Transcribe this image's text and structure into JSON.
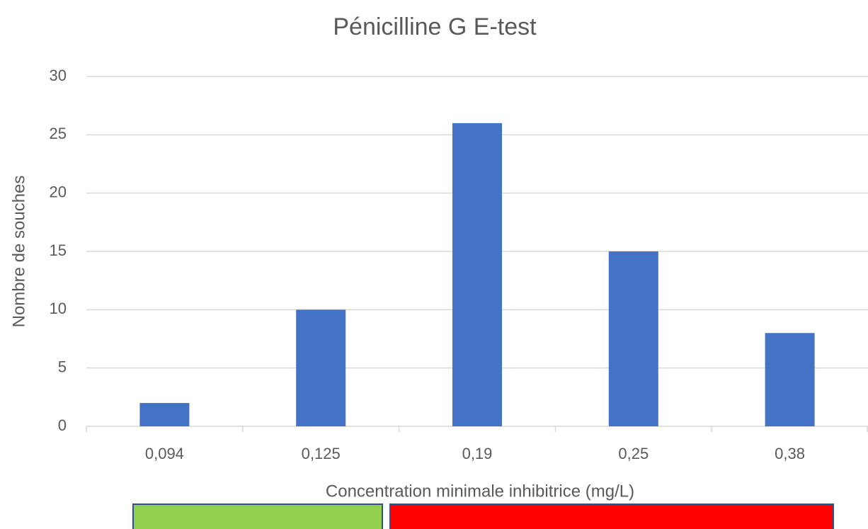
{
  "chart_data": {
    "type": "bar",
    "title": "Pénicilline G E-test",
    "x_label": "Concentration minimale inhibitrice (mg/L)",
    "y_label": "Nombre de souches",
    "categories": [
      "0,094",
      "0,125",
      "0,19",
      "0,25",
      "0,38"
    ],
    "values": [
      2,
      10,
      26,
      15,
      8
    ],
    "color": "#4472c4",
    "ylim": [
      0,
      30
    ],
    "yticks": [
      0,
      5,
      10,
      15,
      20,
      25,
      30
    ],
    "grid": true
  }
}
